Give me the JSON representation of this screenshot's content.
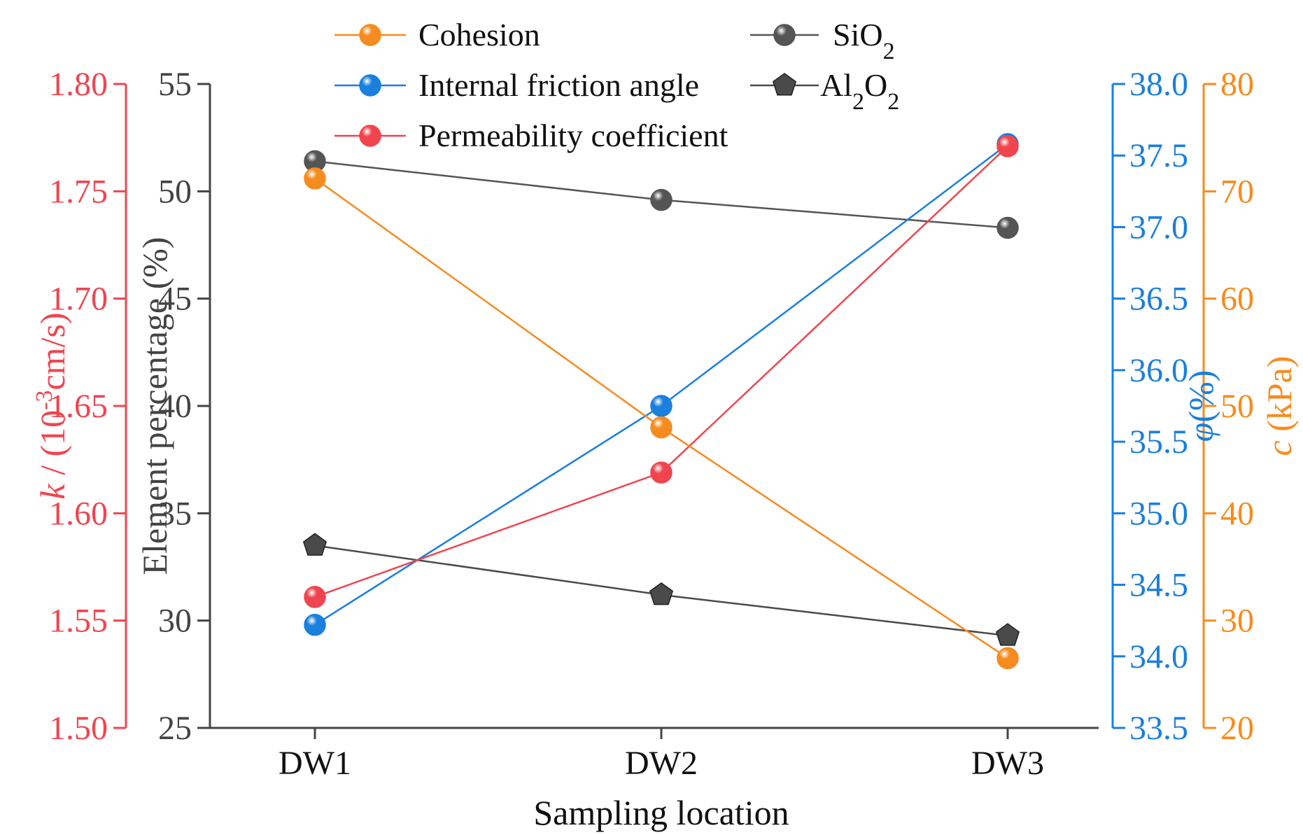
{
  "chart_data": {
    "type": "line",
    "title": "",
    "categories": [
      "DW1",
      "DW2",
      "DW3"
    ],
    "xlabel": "Sampling location",
    "axes": {
      "permeability": {
        "label_italic": "k",
        "label_rest": " / (10",
        "label_sup": "-3",
        "label_end": "cm/s)",
        "ylim": [
          1.5,
          1.8
        ],
        "ticks": [
          "1.50",
          "1.55",
          "1.60",
          "1.65",
          "1.70",
          "1.75",
          "1.80"
        ],
        "color": "#f0454f"
      },
      "element": {
        "label": "Element percentage (%)",
        "ylim": [
          25,
          55
        ],
        "ticks": [
          "25",
          "30",
          "35",
          "40",
          "45",
          "50",
          "55"
        ],
        "color": "#444444"
      },
      "friction": {
        "label_italic": "φ",
        "label_rest": "(%)",
        "ylim": [
          33.5,
          38.0
        ],
        "ticks": [
          "33.5",
          "34.0",
          "34.5",
          "35.0",
          "35.5",
          "36.0",
          "36.5",
          "37.0",
          "37.5",
          "38.0"
        ],
        "color": "#1a7fdd"
      },
      "cohesion": {
        "label_italic": "c",
        "label_rest": " (kPa)",
        "ylim": [
          20,
          80
        ],
        "ticks": [
          "20",
          "30",
          "40",
          "50",
          "60",
          "70",
          "80"
        ],
        "color": "#f68b1f"
      }
    },
    "series": [
      {
        "key": "sio2",
        "name": "SiO",
        "sub": "2",
        "axis": "element",
        "marker": "circle",
        "color": "#555555",
        "values": [
          51.4,
          49.6,
          48.3
        ]
      },
      {
        "key": "al2o2",
        "name": "Al",
        "sub": "2",
        "name2": "O",
        "sub2": "2",
        "axis": "element",
        "marker": "pentagon",
        "color": "#4a4a4a",
        "values": [
          33.5,
          31.2,
          29.3
        ]
      },
      {
        "key": "friction",
        "name": "Internal friction angle",
        "axis": "friction",
        "marker": "circle",
        "color": "#1a7fdd",
        "values": [
          34.22,
          35.75,
          37.58
        ]
      },
      {
        "key": "permeability",
        "name": "Permeability coefficient",
        "axis": "permeability",
        "marker": "circle",
        "color": "#f0454f",
        "values": [
          1.561,
          1.619,
          1.771
        ]
      },
      {
        "key": "cohesion",
        "name": "Cohesion",
        "axis": "cohesion",
        "marker": "circle",
        "color": "#f68b1f",
        "values": [
          71.2,
          48.0,
          26.5
        ]
      }
    ],
    "legend": {
      "left": [
        "cohesion",
        "friction",
        "permeability"
      ],
      "right": [
        "sio2",
        "al2o2"
      ],
      "placement": "top"
    }
  }
}
